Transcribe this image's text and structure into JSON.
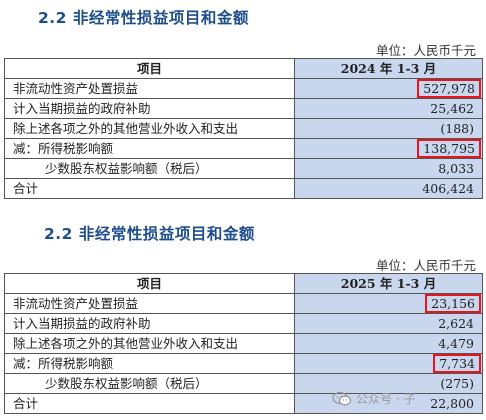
{
  "section1": {
    "title": "2.2  非经常性损益项目和金额",
    "unit": "单位：人民币千元",
    "col_item": "项目",
    "col_period": "2024 年 1-3 月",
    "rows": [
      {
        "label": "非流动性资产处置损益",
        "value": "527,978"
      },
      {
        "label": "计入当期损益的政府补助",
        "value": "25,462"
      },
      {
        "label": "除上述各项之外的其他营业外收入和支出",
        "value": "(188)"
      },
      {
        "label": "减：所得税影响额",
        "value": "138,795"
      },
      {
        "label": "少数股东权益影响额（税后）",
        "value": "8,033"
      },
      {
        "label": "合计",
        "value": "406,424"
      }
    ]
  },
  "section2": {
    "title": "2.2  非经常性损益项目和金额",
    "unit": "单位：人民币千元",
    "col_item": "项目",
    "col_period": "2025 年 1-3 月",
    "rows": [
      {
        "label": "非流动性资产处置损益",
        "value": "23,156"
      },
      {
        "label": "计入当期损益的政府补助",
        "value": "2,624"
      },
      {
        "label": "除上述各项之外的其他营业外收入和支出",
        "value": "4,479"
      },
      {
        "label": "减：所得税影响额",
        "value": "7,734"
      },
      {
        "label": "少数股东权益影响额（税后）",
        "value": "(275)"
      },
      {
        "label": "合计",
        "value": "22,800"
      }
    ]
  },
  "watermark": {
    "text": "公众号 · 子",
    "icon": "wechat-icon",
    "color": "#9a9a9a"
  },
  "highlight_color": "#e8141c",
  "header_fill": "#c9d7ee",
  "title_color": "#1f4e8c"
}
